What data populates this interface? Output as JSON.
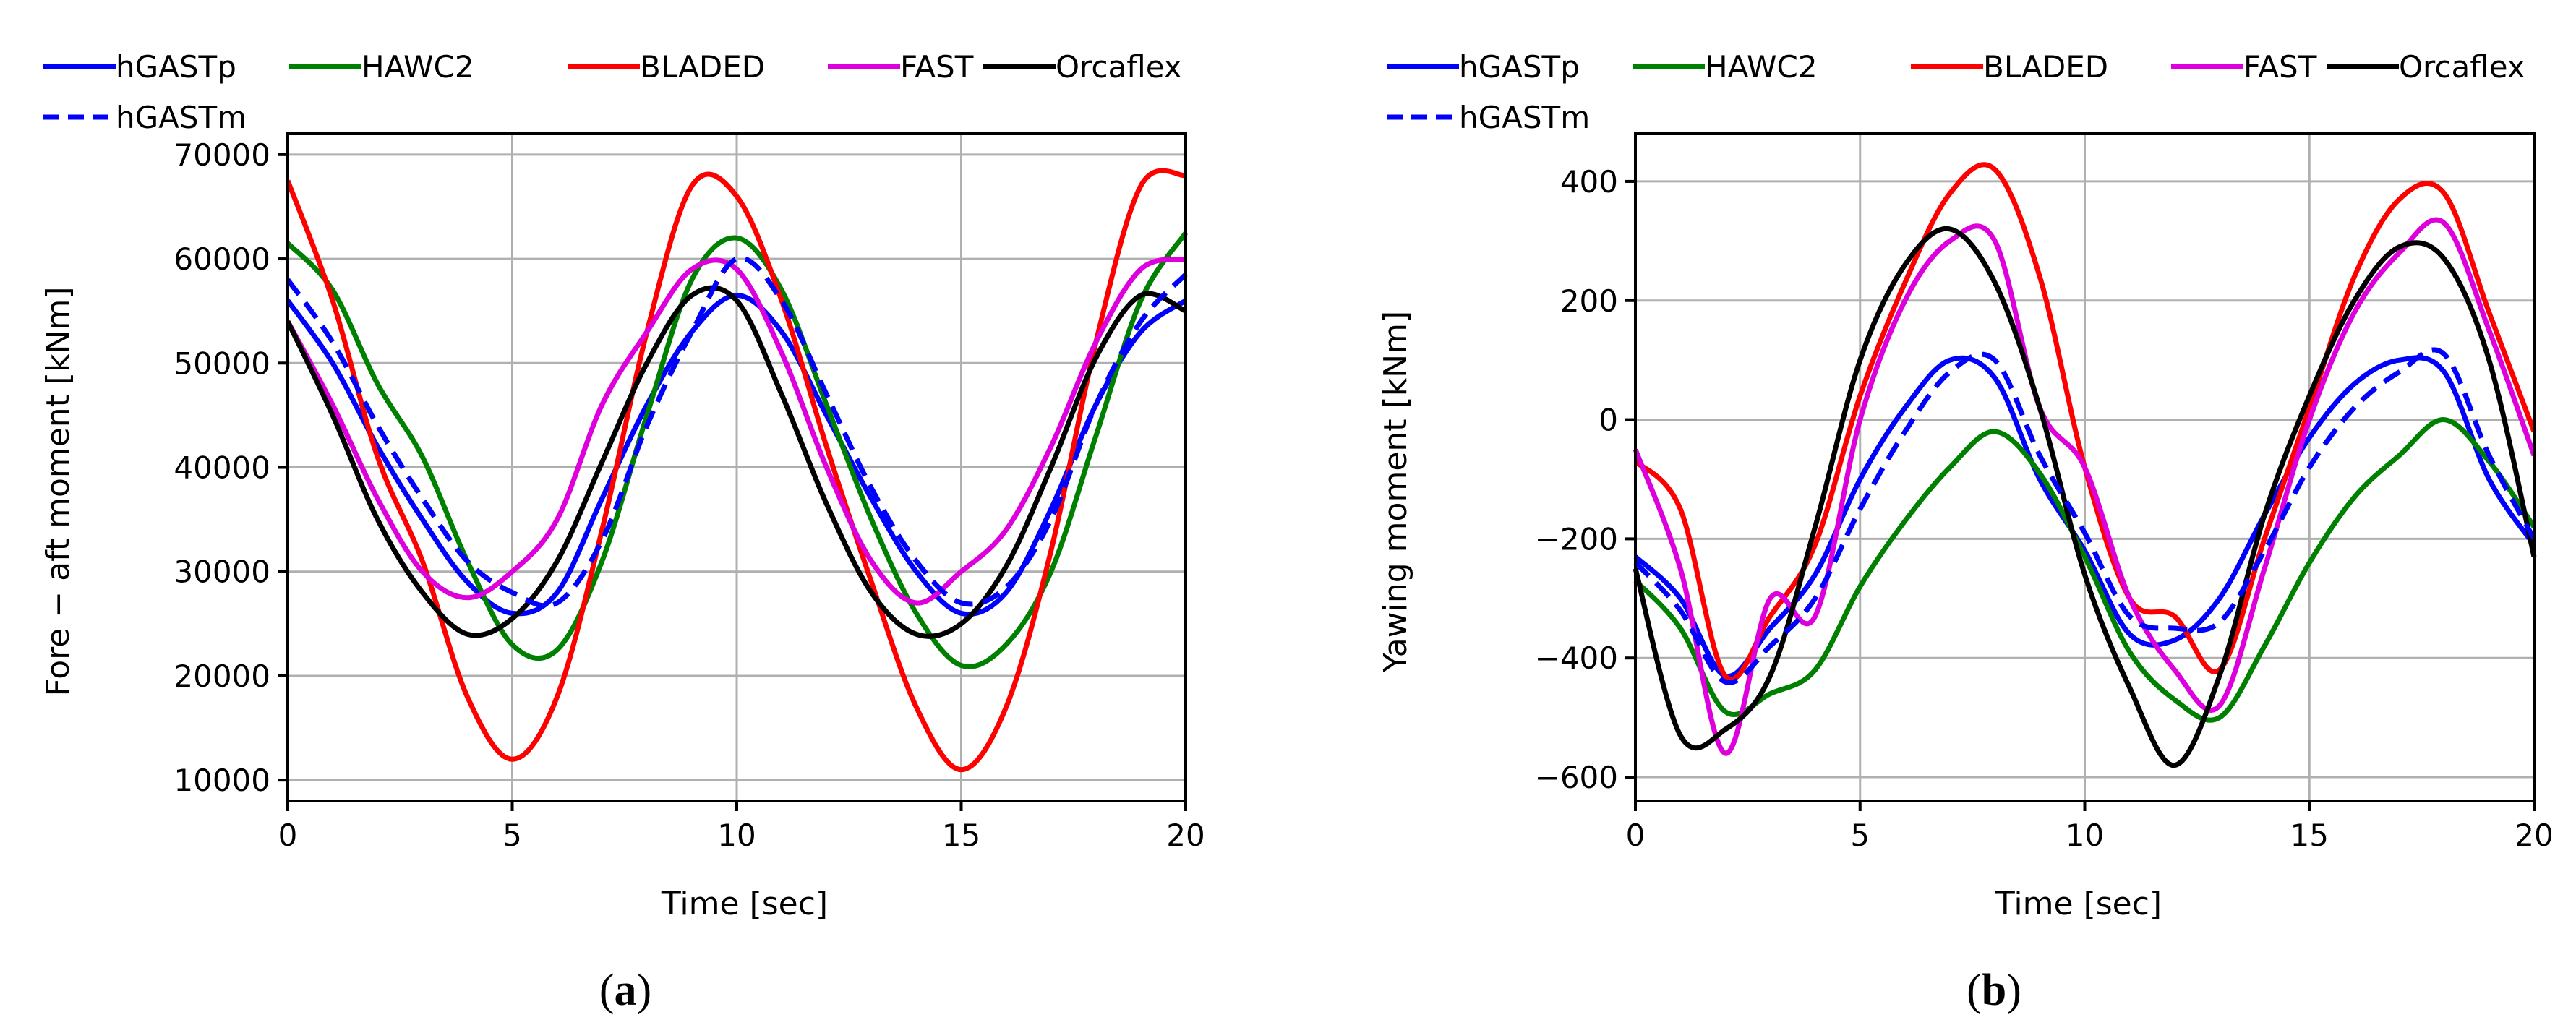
{
  "figure": {
    "panels": [
      {
        "label_open": "(",
        "label_letter": "a",
        "label_close": ")"
      },
      {
        "label_open": "(",
        "label_letter": "b",
        "label_close": ")"
      }
    ]
  },
  "chart_data": [
    {
      "type": "line",
      "panel": "a",
      "title": "",
      "xlabel": "Time [sec]",
      "ylabel": "Fore − aft moment [kNm]",
      "xlim": [
        0,
        20
      ],
      "ylim": [
        8000,
        72000
      ],
      "xticks": [
        0,
        5,
        10,
        15,
        20
      ],
      "yticks": [
        10000,
        20000,
        30000,
        40000,
        50000,
        60000,
        70000
      ],
      "grid": true,
      "legend_placement": "top-left, above plot",
      "series": [
        {
          "name": "hGASTp",
          "color": "#0000ff",
          "style": "solid",
          "x": [
            0,
            1,
            2,
            3,
            4,
            5,
            6,
            7,
            8,
            9,
            10,
            11,
            12,
            13,
            14,
            15,
            16,
            17,
            18,
            19,
            20
          ],
          "y": [
            56000,
            50000,
            42000,
            35000,
            29000,
            26000,
            28000,
            37000,
            46000,
            53000,
            56500,
            53000,
            45000,
            37000,
            30000,
            26000,
            28000,
            36000,
            46000,
            53000,
            56000
          ]
        },
        {
          "name": "HAWC2",
          "color": "#008000",
          "style": "solid",
          "x": [
            0,
            1,
            2,
            3,
            4,
            5,
            6,
            7,
            8,
            9,
            10,
            11,
            12,
            13,
            14,
            15,
            16,
            17,
            18,
            19,
            20
          ],
          "y": [
            61500,
            57000,
            48000,
            41000,
            31000,
            23000,
            22500,
            31000,
            45000,
            58000,
            62000,
            57000,
            46000,
            35000,
            26000,
            21000,
            23000,
            30000,
            43000,
            56000,
            62500
          ]
        },
        {
          "name": "BLADED",
          "color": "#ff0000",
          "style": "solid",
          "x": [
            0,
            1,
            2,
            3,
            4,
            5,
            6,
            7,
            8,
            9,
            10,
            11,
            12,
            13,
            14,
            15,
            16,
            17,
            18,
            19,
            20
          ],
          "y": [
            67500,
            56000,
            41000,
            31000,
            18000,
            12000,
            18000,
            34000,
            53000,
            67000,
            66000,
            56000,
            42000,
            29000,
            17000,
            11000,
            17000,
            32000,
            52000,
            67000,
            68000
          ]
        },
        {
          "name": "FAST",
          "color": "#dd00dd",
          "style": "solid",
          "x": [
            0,
            1,
            2,
            3,
            4,
            5,
            6,
            7,
            8,
            9,
            10,
            11,
            12,
            13,
            14,
            15,
            16,
            17,
            18,
            19,
            20
          ],
          "y": [
            54000,
            46000,
            37000,
            30000,
            27500,
            30000,
            35000,
            46000,
            53000,
            59000,
            59000,
            51000,
            40000,
            31000,
            27000,
            30000,
            34000,
            42000,
            52000,
            59000,
            60000
          ]
        },
        {
          "name": "Orcaflex",
          "color": "#000000",
          "style": "solid",
          "x": [
            0,
            1,
            2,
            3,
            4,
            5,
            6,
            7,
            8,
            9,
            10,
            11,
            12,
            13,
            14,
            15,
            16,
            17,
            18,
            19,
            20
          ],
          "y": [
            54000,
            45000,
            35000,
            28000,
            24000,
            25500,
            31000,
            40500,
            50000,
            56500,
            56000,
            47000,
            36500,
            28000,
            24000,
            25000,
            30500,
            40000,
            50500,
            56500,
            55000
          ]
        },
        {
          "name": "hGASTm",
          "color": "#0000ff",
          "style": "dashed",
          "x": [
            0,
            1,
            2,
            3,
            4,
            5,
            6,
            7,
            8,
            9,
            10,
            11,
            12,
            13,
            14,
            15,
            16,
            17,
            18,
            19,
            20
          ],
          "y": [
            58000,
            52000,
            44000,
            37000,
            31000,
            28000,
            27000,
            33000,
            44000,
            53000,
            60000,
            56000,
            47000,
            38000,
            31000,
            27000,
            28500,
            35000,
            46000,
            54000,
            58500
          ]
        }
      ]
    },
    {
      "type": "line",
      "panel": "b",
      "title": "",
      "xlabel": "Time [sec]",
      "ylabel": "Yawing moment [kNm]",
      "xlim": [
        0,
        20
      ],
      "ylim": [
        -640,
        480
      ],
      "xticks": [
        0,
        5,
        10,
        15,
        20
      ],
      "yticks": [
        -600,
        -400,
        -200,
        0,
        200,
        400
      ],
      "grid": true,
      "legend_placement": "top-left, above plot",
      "series": [
        {
          "name": "hGASTp",
          "color": "#0000ff",
          "style": "solid",
          "x": [
            0,
            1,
            2,
            3,
            4,
            5,
            6,
            7,
            8,
            9,
            10,
            11,
            12,
            13,
            14,
            15,
            16,
            17,
            18,
            19,
            20
          ],
          "y": [
            -230,
            -300,
            -430,
            -350,
            -260,
            -100,
            20,
            100,
            70,
            -100,
            -220,
            -360,
            -370,
            -300,
            -160,
            -30,
            60,
            100,
            80,
            -100,
            -210
          ]
        },
        {
          "name": "HAWC2",
          "color": "#008000",
          "style": "solid",
          "x": [
            0,
            1,
            2,
            3,
            4,
            5,
            6,
            7,
            8,
            9,
            10,
            11,
            12,
            13,
            14,
            15,
            16,
            17,
            18,
            19,
            20
          ],
          "y": [
            -270,
            -350,
            -490,
            -460,
            -420,
            -280,
            -170,
            -80,
            -20,
            -90,
            -230,
            -390,
            -470,
            -500,
            -380,
            -240,
            -130,
            -60,
            0,
            -70,
            -180
          ]
        },
        {
          "name": "BLADED",
          "color": "#ff0000",
          "style": "solid",
          "x": [
            0,
            1,
            2,
            3,
            4,
            5,
            6,
            7,
            8,
            9,
            10,
            11,
            12,
            13,
            14,
            15,
            16,
            17,
            18,
            19,
            20
          ],
          "y": [
            -70,
            -150,
            -430,
            -330,
            -210,
            40,
            230,
            380,
            420,
            240,
            -80,
            -300,
            -330,
            -420,
            -200,
            20,
            240,
            370,
            380,
            180,
            -20
          ]
        },
        {
          "name": "FAST",
          "color": "#dd00dd",
          "style": "solid",
          "x": [
            0,
            1,
            2,
            3,
            4,
            5,
            6,
            7,
            8,
            9,
            10,
            11,
            12,
            13,
            14,
            15,
            16,
            17,
            18,
            19,
            20
          ],
          "y": [
            -50,
            -250,
            -560,
            -300,
            -330,
            0,
            200,
            300,
            300,
            20,
            -80,
            -300,
            -420,
            -480,
            -250,
            0,
            180,
            280,
            330,
            150,
            -60
          ]
        },
        {
          "name": "Orcaflex",
          "color": "#000000",
          "style": "solid",
          "x": [
            0,
            1,
            2,
            3,
            4,
            5,
            6,
            7,
            8,
            9,
            10,
            11,
            12,
            13,
            14,
            15,
            16,
            17,
            18,
            19,
            20
          ],
          "y": [
            -250,
            -530,
            -520,
            -430,
            -180,
            100,
            260,
            320,
            230,
            20,
            -260,
            -450,
            -580,
            -430,
            -160,
            40,
            200,
            290,
            270,
            100,
            -230
          ]
        },
        {
          "name": "hGASTm",
          "color": "#0000ff",
          "style": "dashed",
          "x": [
            0,
            1,
            2,
            3,
            4,
            5,
            6,
            7,
            8,
            9,
            10,
            11,
            12,
            13,
            14,
            15,
            16,
            17,
            18,
            19,
            20
          ],
          "y": [
            -240,
            -320,
            -440,
            -380,
            -300,
            -150,
            -20,
            80,
            100,
            -60,
            -190,
            -330,
            -350,
            -340,
            -220,
            -80,
            20,
            80,
            110,
            -60,
            -200
          ]
        }
      ]
    }
  ]
}
